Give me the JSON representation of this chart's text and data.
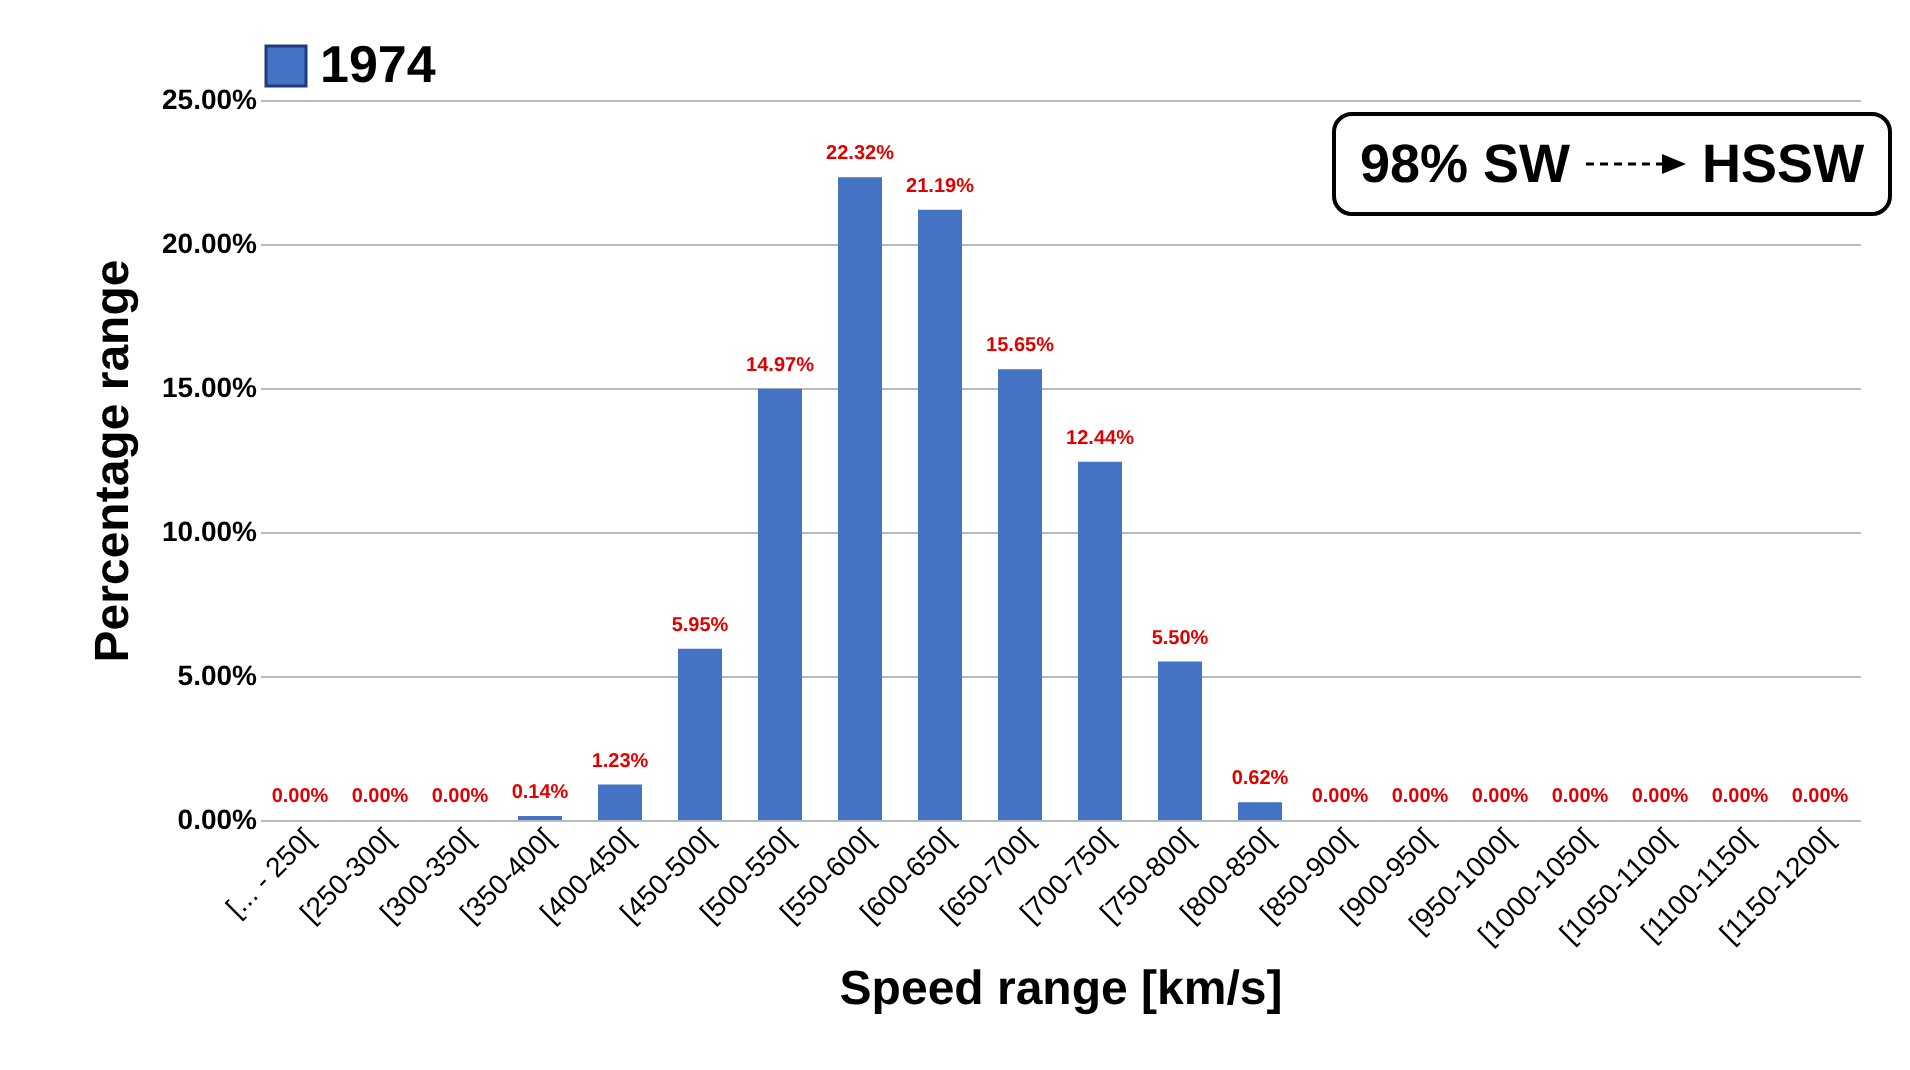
{
  "chart_data": {
    "type": "bar",
    "xlabel": "Speed range [km/s]",
    "ylabel": "Percentage range",
    "categories": [
      "[... - 250[",
      "[250-300[",
      "[300-350[",
      "[350-400[",
      "[400-450[",
      "[450-500[",
      "[500-550[",
      "[550-600[",
      "[600-650[",
      "[650-700[",
      "[700-750[",
      "[750-800[",
      "[800-850[",
      "[850-900[",
      "[900-950[",
      "[950-1000[",
      "[1000-1050[",
      "[1050-1100[",
      "[1100-1150[",
      "[1150-1200["
    ],
    "series": [
      {
        "name": "1974",
        "color": "#4472c4",
        "values": [
          0,
          0,
          0,
          0.14,
          1.23,
          5.95,
          14.97,
          22.32,
          21.19,
          15.65,
          12.44,
          5.5,
          0.62,
          0,
          0,
          0,
          0,
          0,
          0,
          0
        ],
        "value_labels": [
          "0.00%",
          "0.00%",
          "0.00%",
          "0.14%",
          "1.23%",
          "5.95%",
          "14.97%",
          "22.32%",
          "21.19%",
          "15.65%",
          "12.44%",
          "5.50%",
          "0.62%",
          "0.00%",
          "0.00%",
          "0.00%",
          "0.00%",
          "0.00%",
          "0.00%",
          "0.00%"
        ]
      }
    ],
    "ylim": [
      0,
      25
    ],
    "yticks": [
      {
        "value": 0,
        "label": "0.00%"
      },
      {
        "value": 5,
        "label": "5.00%"
      },
      {
        "value": 10,
        "label": "10.00%"
      },
      {
        "value": 15,
        "label": "15.00%"
      },
      {
        "value": 20,
        "label": "20.00%"
      },
      {
        "value": 25,
        "label": "25.00%"
      }
    ],
    "grid": "y",
    "legend": "top",
    "annotations": [
      "98% SW",
      "HSSW"
    ]
  }
}
